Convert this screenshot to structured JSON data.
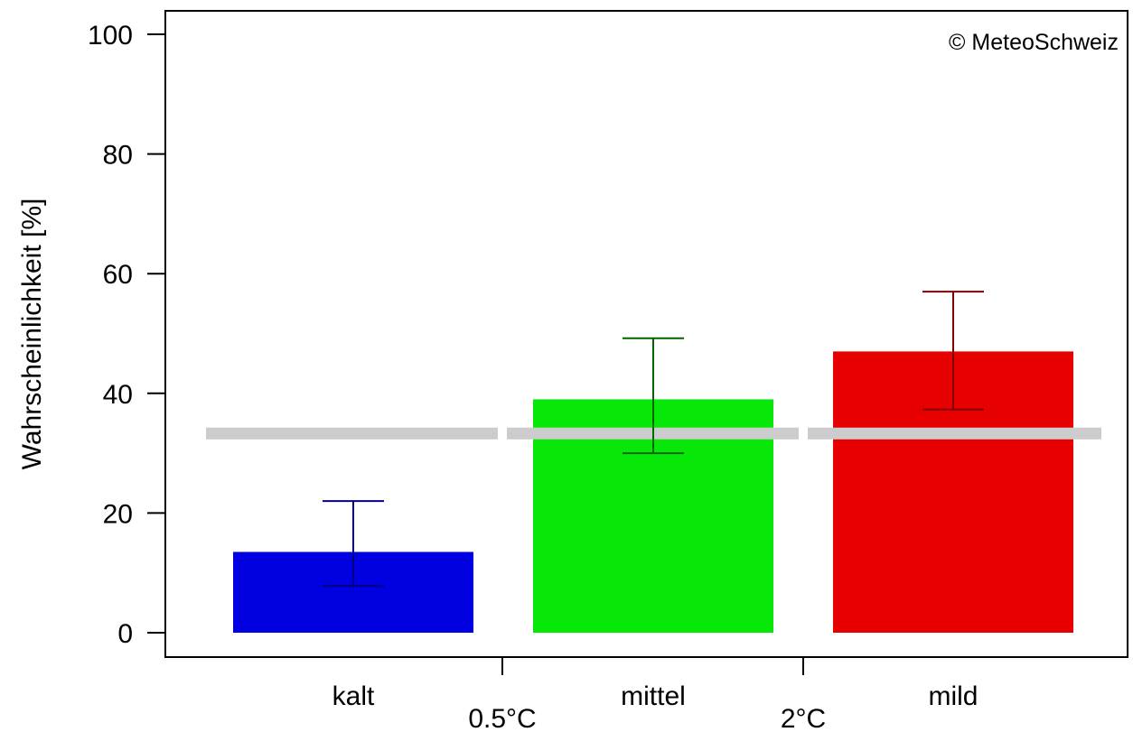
{
  "chart_data": {
    "type": "bar",
    "title": "",
    "ylabel": "Wahrscheinlichkeit [%]",
    "xlabel": "",
    "ylim": [
      0,
      100
    ],
    "yticks": [
      0,
      20,
      40,
      60,
      80,
      100
    ],
    "categories": [
      "kalt",
      "mittel",
      "mild"
    ],
    "values": [
      13.5,
      39,
      47
    ],
    "error_low": [
      7.8,
      30,
      37.3
    ],
    "error_high": [
      22,
      49.2,
      57
    ],
    "reference_value": 33.3,
    "boundary_labels": [
      "0.5°C",
      "2°C"
    ],
    "copyright": "© MeteoSchweiz",
    "grid": false,
    "colors": {
      "bars": [
        "#0000e0",
        "#08e808",
        "#e60000"
      ],
      "errors": [
        "#000080",
        "#006400",
        "#800000"
      ],
      "reference": "#cccccc",
      "axis": "#000000"
    }
  }
}
